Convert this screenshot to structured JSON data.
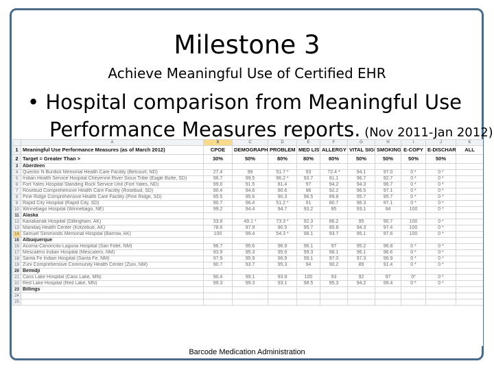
{
  "slide": {
    "title": "Milestone 3",
    "subtitle": "Achieve Meaningful Use of Certified EHR",
    "bullet_text_line1": "• Hospital comparison from Meaningful Use",
    "bullet_text_line2": "Performance Measures reports.",
    "bullet_date_range": " (Nov 2011-Jan 2012)",
    "caption": "Barcode Medication Administration"
  },
  "sheet": {
    "column_letters": [
      "A",
      "B",
      "C",
      "D",
      "E",
      "F",
      "G",
      "H",
      "I",
      "J",
      "K"
    ],
    "selected_column": "B",
    "rows": [
      {
        "num": "1",
        "type": "hdr",
        "cells": [
          "Meaningful Use Performance Measures (as of March 2012)",
          "CPOE",
          "DEMOGRAPHICS",
          "PROBLEM LIST",
          "MED LIST",
          "ALLERGY LIST",
          "VITAL SIGNS",
          "SMOKING",
          "E-COPY",
          "E-DISCHARGE",
          "ALL"
        ]
      },
      {
        "num": "2",
        "type": "hdr",
        "cells": [
          "Target = Greater Than >",
          "30%",
          "50%",
          "80%",
          "80%",
          "80%",
          "50%",
          "50%",
          "50%",
          "50%",
          ""
        ]
      },
      {
        "num": "3",
        "type": "group",
        "cells": [
          "Aberdeen",
          "",
          "",
          "",
          "",
          "",
          "",
          "",
          "",
          "",
          ""
        ]
      },
      {
        "num": "4",
        "type": "data",
        "cells": [
          "Quentin N Burdick Memorial Health Care Facility (Belcourt, ND)",
          "27.4",
          "99",
          "51.7 *",
          "93",
          "72.4 *",
          "94.1",
          "97.0",
          "0 *",
          "0 *",
          ""
        ]
      },
      {
        "num": "5",
        "type": "data",
        "cells": [
          "Indian Health Service Hospital Cheyenne River Sioux Tribe (Eagle Butte, SD)",
          "96.7",
          "99.5",
          "96.2 *",
          "93.7",
          "81.1",
          "96.7",
          "92.7",
          "0 *",
          "0 *",
          ""
        ]
      },
      {
        "num": "6",
        "type": "data",
        "cells": [
          "Fort Yates Hospital Standing Rock Service Unit (Fort Yates, ND)",
          "99.6",
          "91.5",
          "81.4",
          "97",
          "94.2",
          "94.3",
          "96.7",
          "0 *",
          "0 *",
          ""
        ]
      },
      {
        "num": "7",
        "type": "data",
        "cells": [
          "Rosebud Comprehensive Health Care Facility (Rosebud, SD)",
          "90.4",
          "94.6",
          "90.6",
          "96",
          "92.2",
          "96.5",
          "97.1",
          "0 *",
          "0 *",
          ""
        ]
      },
      {
        "num": "8",
        "type": "data",
        "cells": [
          "Pine Ridge Comprehensive Health Care Facility (Pine Ridge, SD)",
          "95.5",
          "95.6",
          "90.3",
          "96.5",
          "89.8",
          "95.7",
          "95.7",
          "0 *",
          "0 *",
          ""
        ]
      },
      {
        "num": "9",
        "type": "data",
        "cells": [
          "Rapid City Hospital (Rapid City, SD)",
          "90.7",
          "96.4",
          "51.2 *",
          "91",
          "80.7",
          "96.3",
          "97.1",
          "0 *",
          "0 *",
          ""
        ]
      },
      {
        "num": "10",
        "type": "data",
        "cells": [
          "Winnebago Hospital (Winnebago, NE)",
          "99.2",
          "94.4",
          "94.7",
          "93.2",
          "95",
          "93.1",
          "94",
          "100",
          "0 *",
          ""
        ]
      },
      {
        "num": "11",
        "type": "group",
        "cells": [
          "Alaska",
          "",
          "",
          "",
          "",
          "",
          "",
          "",
          "",
          "",
          ""
        ]
      },
      {
        "num": "12",
        "type": "data",
        "cells": [
          "Kanakanak Hospital (Dillingham, AK)",
          "33.8",
          "49.1 *",
          "73.3 *",
          "92.3",
          "86.2",
          "95",
          "90.7",
          "100",
          "0 *",
          ""
        ]
      },
      {
        "num": "13",
        "type": "data",
        "cells": [
          "Maniilaq Health Center (Kotzebue, AK)",
          "78.6",
          "97.9",
          "90.5",
          "95.7",
          "85.8",
          "94.3",
          "97.4",
          "100",
          "0 *",
          ""
        ]
      },
      {
        "num": "14",
        "type": "data",
        "sel": true,
        "cells": [
          "Samuel Simmonds Memorial Hospital (Barrow, AK)",
          "100",
          "99.4",
          "54.3 *",
          "98.1",
          "93.7",
          "95.1",
          "97.6",
          "100",
          "0 *",
          ""
        ]
      },
      {
        "num": "15",
        "type": "group",
        "cells": [
          "Albuquerque",
          "",
          "",
          "",
          "",
          "",
          "",
          "",
          "",
          "",
          ""
        ]
      },
      {
        "num": "16",
        "type": "data",
        "cells": [
          "Acoma-Canoncito-Laguna Hospital (San Fidel, NM)",
          "96.7",
          "95.6",
          "96.9",
          "96.1",
          "97",
          "95.2",
          "96.8",
          "0 *",
          "0 *",
          ""
        ]
      },
      {
        "num": "17",
        "type": "data",
        "cells": [
          "Mescalero Indian Hospital (Mescalero, NM)",
          "93.9",
          "95.3",
          "95.9",
          "99.3",
          "98.1",
          "96.1",
          "96.6",
          "0 *",
          "0 *",
          ""
        ]
      },
      {
        "num": "18",
        "type": "data",
        "cells": [
          "Santa Fe Indian Hospital (Santa Fe, NM)",
          "97.9",
          "95.9",
          "96.9",
          "99.1",
          "97.0",
          "97.3",
          "96.9",
          "0 *",
          "0 *",
          ""
        ]
      },
      {
        "num": "19",
        "type": "data",
        "cells": [
          "Zuni Comprehensive Community Health Center (Zuni, NM)",
          "90.7",
          "93.7",
          "95.3",
          "94",
          "90.2",
          "89",
          "91.4",
          "0 *",
          "0 *",
          ""
        ]
      },
      {
        "num": "20",
        "type": "group",
        "cells": [
          "Bemidji",
          "",
          "",
          "",
          "",
          "",
          "",
          "",
          "",
          "",
          ""
        ]
      },
      {
        "num": "21",
        "type": "data",
        "cells": [
          "Cass Lake Hospital (Cass Lake, MN)",
          "90.4",
          "99.1",
          "93.9",
          "100",
          "93",
          "92",
          "97",
          "0*",
          "0 *",
          ""
        ]
      },
      {
        "num": "22",
        "type": "data",
        "cells": [
          "Red Lake Hospital (Red Lake, MN)",
          "99.3",
          "99.3",
          "93.1",
          "98.5",
          "95.3",
          "94.2",
          "99.4",
          "0 *",
          "0 *",
          ""
        ]
      },
      {
        "num": "23",
        "type": "group",
        "cells": [
          "Billings",
          "",
          "",
          "",
          "",
          "",
          "",
          "",
          "",
          "",
          ""
        ]
      },
      {
        "num": "24",
        "type": "data",
        "cells": [
          "",
          "",
          "",
          "",
          "",
          "",
          "",
          "",
          "",
          "",
          ""
        ]
      },
      {
        "num": "25",
        "type": "data",
        "cells": [
          "",
          "",
          "",
          "",
          "",
          "",
          "",
          "",
          "",
          "",
          ""
        ]
      }
    ]
  },
  "colors": {
    "frame_border": "#4a6a8a",
    "header_bg": "#eef1f6",
    "selection": "#f9d98b"
  }
}
